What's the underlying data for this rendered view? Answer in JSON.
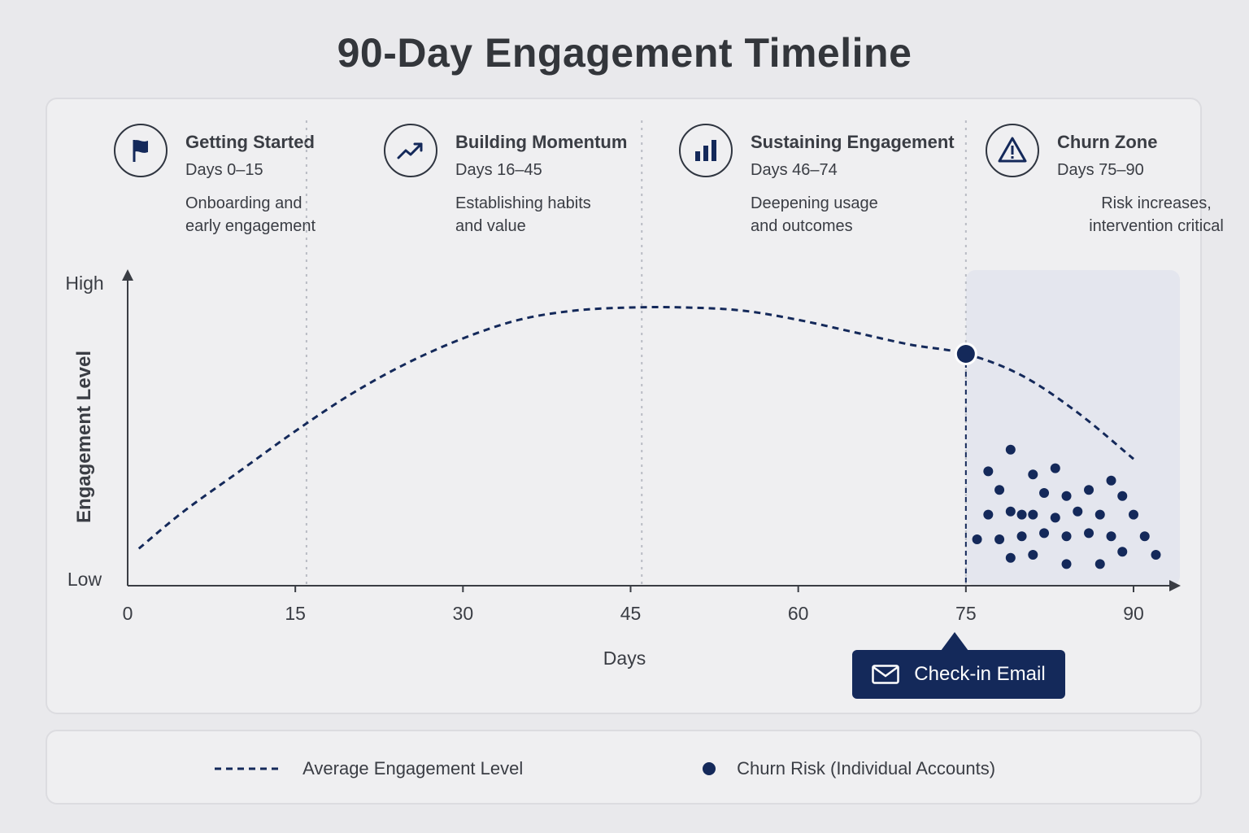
{
  "title": "90-Day Engagement Timeline",
  "phases": [
    {
      "title": "Getting Started",
      "range": "Days 0–15",
      "desc_line1": "Onboarding and",
      "desc_line2": "early engagement",
      "icon": "flag-icon"
    },
    {
      "title": "Building Momentum",
      "range": "Days 16–45",
      "desc_line1": "Establishing habits",
      "desc_line2": "and value",
      "icon": "trend-up-icon"
    },
    {
      "title": "Sustaining Engagement",
      "range": "Days 46–74",
      "desc_line1": "Deepening usage",
      "desc_line2": "and outcomes",
      "icon": "bar-chart-icon"
    },
    {
      "title": "Churn Zone",
      "range": "Days 75–90",
      "desc_line1": "Risk increases,",
      "desc_line2": "intervention critical",
      "icon": "warning-icon"
    }
  ],
  "callout": {
    "label": "Check-in Email",
    "icon": "mail-icon"
  },
  "legend": {
    "line_label": "Average Engagement Level",
    "dot_label": "Churn Risk (Individual Accounts)"
  },
  "colors": {
    "accent": "#14295a",
    "background": "#e9e9ec",
    "card": "#efeff1",
    "churn_zone": "#e4e6ee"
  },
  "chart_data": {
    "type": "line",
    "xlabel": "Days",
    "ylabel": "Engagement Level",
    "y_tick_labels": {
      "low": "Low",
      "high": "High"
    },
    "x_ticks": [
      0,
      15,
      30,
      45,
      60,
      75,
      90
    ],
    "xlim": [
      0,
      90
    ],
    "ylim": [
      0,
      100
    ],
    "grid": false,
    "phase_boundaries": [
      16,
      46,
      75
    ],
    "shaded_region": {
      "label": "Churn Zone",
      "x_start": 75,
      "x_end": 90
    },
    "series": [
      {
        "name": "Average Engagement Level",
        "style": "dashed",
        "x": [
          1,
          5,
          10,
          15,
          20,
          25,
          30,
          35,
          40,
          45,
          50,
          55,
          60,
          65,
          70,
          75,
          80,
          85,
          90
        ],
        "y": [
          12,
          24,
          37,
          50,
          62,
          72,
          80,
          86,
          89,
          90,
          90,
          89,
          86,
          82,
          78,
          75,
          68,
          56,
          41
        ]
      },
      {
        "name": "Churn Risk (Individual Accounts)",
        "style": "points",
        "x": [
          79,
          77,
          81,
          83,
          78,
          80,
          82,
          84,
          86,
          88,
          89,
          77,
          79,
          81,
          83,
          85,
          87,
          90,
          78,
          80,
          82,
          84,
          86,
          88,
          91,
          76,
          79,
          81,
          84,
          87,
          89,
          92
        ],
        "y": [
          44,
          37,
          36,
          38,
          31,
          23,
          30,
          29,
          31,
          34,
          29,
          23,
          24,
          23,
          22,
          24,
          23,
          23,
          15,
          16,
          17,
          16,
          17,
          16,
          16,
          15,
          9,
          10,
          7,
          7,
          11,
          10
        ]
      }
    ],
    "annotation": {
      "x": 75,
      "label": "Check-in Email"
    }
  }
}
